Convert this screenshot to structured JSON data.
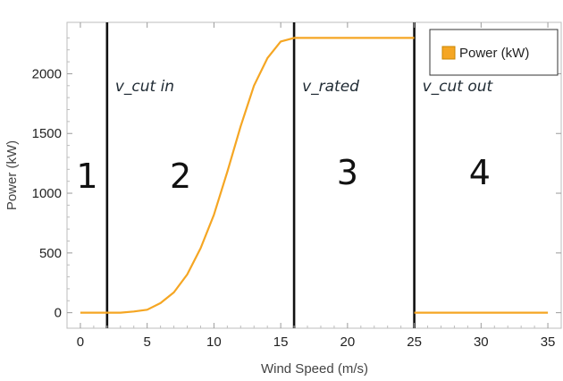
{
  "chart_data": {
    "type": "line",
    "xlabel": "Wind Speed (m/s)",
    "ylabel": "Power (kW)",
    "xlim": [
      -1,
      36
    ],
    "ylim": [
      -130,
      2430
    ],
    "x_ticks": [
      0,
      5,
      10,
      15,
      20,
      25,
      30,
      35
    ],
    "y_ticks": [
      0,
      500,
      1000,
      1500,
      2000
    ],
    "grid": false,
    "legend_position": "top-right",
    "series": [
      {
        "name": "Power (kW)",
        "color": "#f5a623",
        "segments": [
          [
            [
              0,
              0
            ],
            [
              1,
              0
            ],
            [
              2,
              0
            ],
            [
              3,
              0
            ],
            [
              4,
              10
            ],
            [
              5,
              25
            ],
            [
              6,
              80
            ],
            [
              7,
              170
            ],
            [
              8,
              320
            ],
            [
              9,
              540
            ],
            [
              10,
              820
            ],
            [
              11,
              1180
            ],
            [
              12,
              1560
            ],
            [
              13,
              1900
            ],
            [
              14,
              2130
            ],
            [
              15,
              2270
            ],
            [
              16,
              2300
            ],
            [
              17,
              2300
            ],
            [
              18,
              2300
            ],
            [
              19,
              2300
            ],
            [
              20,
              2300
            ],
            [
              21,
              2300
            ],
            [
              22,
              2300
            ],
            [
              23,
              2300
            ],
            [
              24,
              2300
            ],
            [
              25,
              2300
            ]
          ],
          [
            [
              25,
              0
            ],
            [
              26,
              0
            ],
            [
              28,
              0
            ],
            [
              30,
              0
            ],
            [
              32,
              0
            ],
            [
              35,
              0
            ]
          ]
        ]
      }
    ],
    "vertical_lines": [
      {
        "x": 2,
        "label": "v_cut in"
      },
      {
        "x": 16,
        "label": "v_rated"
      },
      {
        "x": 25,
        "label": "v_cut out"
      }
    ],
    "regions": [
      {
        "label": "1",
        "x": 0.5,
        "y": 1150
      },
      {
        "label": "2",
        "x": 7.5,
        "y": 1150
      },
      {
        "label": "3",
        "x": 20,
        "y": 1180
      },
      {
        "label": "4",
        "x": 29.9,
        "y": 1180
      }
    ],
    "annotation_y": 1900
  }
}
